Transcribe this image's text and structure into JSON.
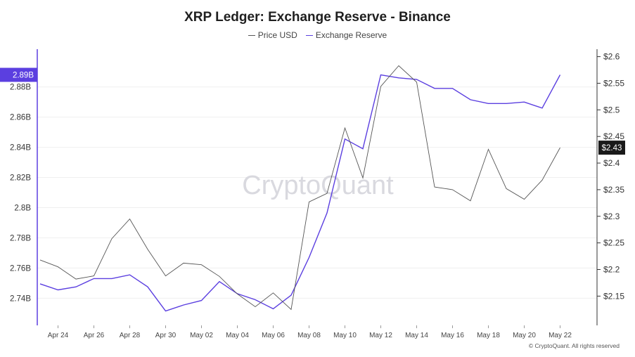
{
  "chart_data": {
    "type": "line",
    "title": "XRP Ledger: Exchange Reserve - Binance",
    "legend": [
      {
        "label": "Price USD",
        "color": "#555555"
      },
      {
        "label": "Exchange Reserve",
        "color": "#5b3fe0"
      }
    ],
    "x": [
      "Apr 23",
      "Apr 24",
      "Apr 25",
      "Apr 26",
      "Apr 27",
      "Apr 28",
      "Apr 29",
      "Apr 30",
      "May 01",
      "May 02",
      "May 03",
      "May 04",
      "May 05",
      "May 06",
      "May 07",
      "May 08",
      "May 09",
      "May 10",
      "May 11",
      "May 12",
      "May 13",
      "May 14",
      "May 15",
      "May 16",
      "May 17",
      "May 18",
      "May 19",
      "May 20",
      "May 21",
      "May 22"
    ],
    "x_tick_labels": [
      "Apr 24",
      "Apr 26",
      "Apr 28",
      "Apr 30",
      "May 02",
      "May 04",
      "May 06",
      "May 08",
      "May 10",
      "May 12",
      "May 14",
      "May 16",
      "May 18",
      "May 20",
      "May 22"
    ],
    "series": [
      {
        "name": "Exchange Reserve",
        "axis": "left",
        "values": [
          2.7495,
          2.7455,
          2.7475,
          2.753,
          2.753,
          2.7555,
          2.7475,
          2.7315,
          2.7355,
          2.7385,
          2.751,
          2.743,
          2.739,
          2.733,
          2.742,
          2.767,
          2.7965,
          2.8455,
          2.839,
          2.888,
          2.886,
          2.885,
          2.879,
          2.879,
          2.8715,
          2.869,
          2.869,
          2.87,
          2.866,
          2.888
        ]
      },
      {
        "name": "Price USD",
        "axis": "right",
        "values": [
          2.218,
          2.205,
          2.182,
          2.188,
          2.258,
          2.295,
          2.238,
          2.188,
          2.212,
          2.209,
          2.187,
          2.154,
          2.13,
          2.156,
          2.125,
          2.327,
          2.343,
          2.466,
          2.372,
          2.544,
          2.583,
          2.552,
          2.355,
          2.35,
          2.329,
          2.426,
          2.352,
          2.332,
          2.368,
          2.429
        ]
      }
    ],
    "y_left": {
      "ticks": [
        "2.74B",
        "2.76B",
        "2.78B",
        "2.8B",
        "2.82B",
        "2.84B",
        "2.86B",
        "2.88B"
      ],
      "tick_values": [
        2.74,
        2.76,
        2.78,
        2.8,
        2.82,
        2.84,
        2.86,
        2.88
      ],
      "range": [
        2.722,
        2.905
      ],
      "highlight_label": "2.89B",
      "highlight_value": 2.888
    },
    "y_right": {
      "ticks": [
        "$2.15",
        "$2.2",
        "$2.25",
        "$2.3",
        "$2.35",
        "$2.4",
        "$2.45",
        "$2.5",
        "$2.55",
        "$2.6"
      ],
      "tick_values": [
        2.15,
        2.2,
        2.25,
        2.3,
        2.35,
        2.4,
        2.45,
        2.5,
        2.55,
        2.6
      ],
      "range": [
        2.095,
        2.614
      ],
      "highlight_label": "$2.43",
      "highlight_value": 2.429
    },
    "grid": "horizontal",
    "watermark": "CryptoQuant",
    "footer": "© CryptoQuant. All rights reserved"
  }
}
